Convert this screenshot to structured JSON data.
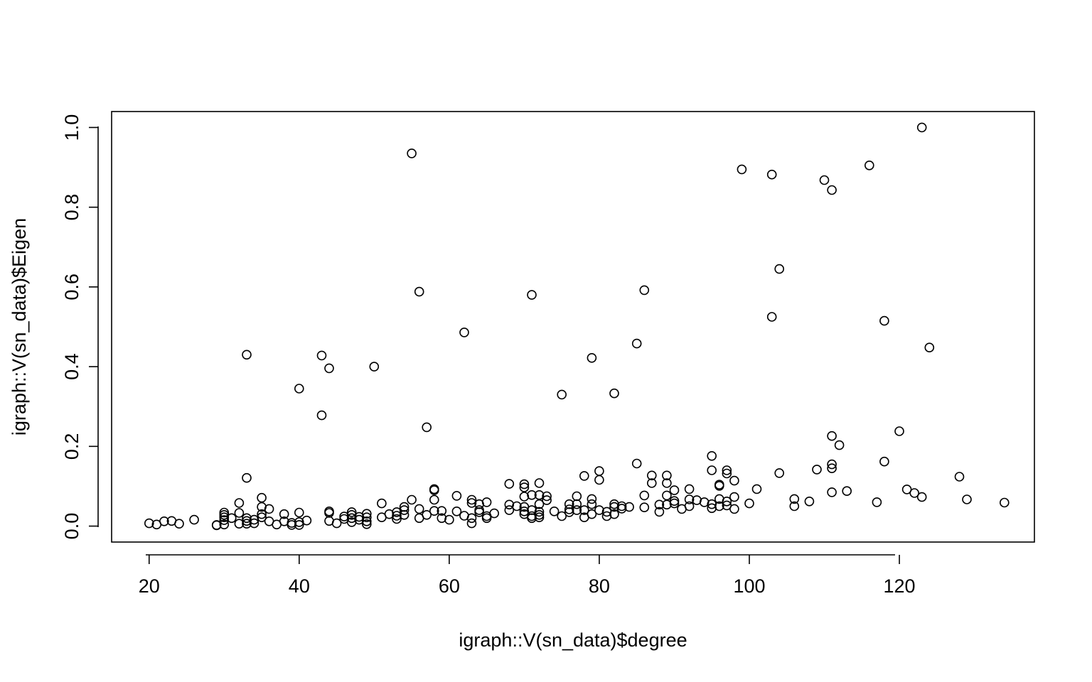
{
  "chart_data": {
    "type": "scatter",
    "xlabel": "igraph::V(sn_data)$degree",
    "ylabel": "igraph::V(sn_data)$Eigen",
    "xlim": [
      15,
      138
    ],
    "ylim": [
      -0.04,
      1.04
    ],
    "x_ticks": [
      20,
      40,
      60,
      80,
      100,
      120
    ],
    "y_ticks": [
      0.0,
      0.2,
      0.4,
      0.6,
      0.8,
      1.0
    ],
    "x_tick_labels": [
      "20",
      "40",
      "60",
      "80",
      "100",
      "120"
    ],
    "y_tick_labels": [
      "0.0",
      "0.2",
      "0.4",
      "0.6",
      "0.8",
      "1.0"
    ],
    "grid": false,
    "legend": "none",
    "points": [
      [
        20,
        0.007
      ],
      [
        21,
        0.004
      ],
      [
        22,
        0.012
      ],
      [
        23,
        0.013
      ],
      [
        24,
        0.006
      ],
      [
        26,
        0.016
      ],
      [
        29,
        0.003
      ],
      [
        29,
        0.002
      ],
      [
        30,
        0.034
      ],
      [
        30,
        0.028
      ],
      [
        30,
        0.022
      ],
      [
        30,
        0.015
      ],
      [
        30,
        0.004
      ],
      [
        31,
        0.02
      ],
      [
        32,
        0.058
      ],
      [
        32,
        0.033
      ],
      [
        32,
        0.006
      ],
      [
        33,
        0.43
      ],
      [
        33,
        0.121
      ],
      [
        33,
        0.02
      ],
      [
        33,
        0.013
      ],
      [
        33,
        0.006
      ],
      [
        34,
        0.016
      ],
      [
        34,
        0.007
      ],
      [
        35,
        0.071
      ],
      [
        35,
        0.048
      ],
      [
        35,
        0.03
      ],
      [
        35,
        0.022
      ],
      [
        36,
        0.043
      ],
      [
        36,
        0.012
      ],
      [
        37,
        0.004
      ],
      [
        38,
        0.03
      ],
      [
        38,
        0.012
      ],
      [
        39,
        0.008
      ],
      [
        39,
        0.003
      ],
      [
        40,
        0.345
      ],
      [
        40,
        0.034
      ],
      [
        40,
        0.01
      ],
      [
        40,
        0.003
      ],
      [
        41,
        0.014
      ],
      [
        43,
        0.428
      ],
      [
        43,
        0.278
      ],
      [
        44,
        0.396
      ],
      [
        44,
        0.037
      ],
      [
        44,
        0.033
      ],
      [
        44,
        0.013
      ],
      [
        45,
        0.007
      ],
      [
        46,
        0.024
      ],
      [
        46,
        0.018
      ],
      [
        47,
        0.035
      ],
      [
        47,
        0.028
      ],
      [
        47,
        0.02
      ],
      [
        47,
        0.01
      ],
      [
        48,
        0.023
      ],
      [
        48,
        0.016
      ],
      [
        49,
        0.031
      ],
      [
        49,
        0.022
      ],
      [
        49,
        0.012
      ],
      [
        49,
        0.005
      ],
      [
        50,
        0.4
      ],
      [
        51,
        0.057
      ],
      [
        51,
        0.022
      ],
      [
        52,
        0.03
      ],
      [
        53,
        0.035
      ],
      [
        53,
        0.026
      ],
      [
        53,
        0.018
      ],
      [
        54,
        0.048
      ],
      [
        54,
        0.04
      ],
      [
        54,
        0.028
      ],
      [
        55,
        0.935
      ],
      [
        55,
        0.066
      ],
      [
        56,
        0.588
      ],
      [
        56,
        0.043
      ],
      [
        56,
        0.02
      ],
      [
        57,
        0.248
      ],
      [
        57,
        0.028
      ],
      [
        58,
        0.093
      ],
      [
        58,
        0.09
      ],
      [
        58,
        0.066
      ],
      [
        58,
        0.038
      ],
      [
        59,
        0.038
      ],
      [
        59,
        0.02
      ],
      [
        60,
        0.016
      ],
      [
        61,
        0.076
      ],
      [
        61,
        0.037
      ],
      [
        62,
        0.486
      ],
      [
        62,
        0.026
      ],
      [
        63,
        0.066
      ],
      [
        63,
        0.058
      ],
      [
        63,
        0.02
      ],
      [
        63,
        0.007
      ],
      [
        64,
        0.055
      ],
      [
        64,
        0.04
      ],
      [
        64,
        0.035
      ],
      [
        65,
        0.06
      ],
      [
        65,
        0.025
      ],
      [
        65,
        0.02
      ],
      [
        66,
        0.032
      ],
      [
        68,
        0.106
      ],
      [
        68,
        0.054
      ],
      [
        68,
        0.04
      ],
      [
        69,
        0.05
      ],
      [
        70,
        0.105
      ],
      [
        70,
        0.097
      ],
      [
        70,
        0.074
      ],
      [
        70,
        0.048
      ],
      [
        70,
        0.037
      ],
      [
        70,
        0.03
      ],
      [
        71,
        0.58
      ],
      [
        71,
        0.078
      ],
      [
        71,
        0.04
      ],
      [
        71,
        0.025
      ],
      [
        71,
        0.02
      ],
      [
        72,
        0.108
      ],
      [
        72,
        0.078
      ],
      [
        72,
        0.055
      ],
      [
        72,
        0.036
      ],
      [
        72,
        0.028
      ],
      [
        72,
        0.022
      ],
      [
        73,
        0.075
      ],
      [
        73,
        0.065
      ],
      [
        74,
        0.037
      ],
      [
        75,
        0.33
      ],
      [
        75,
        0.025
      ],
      [
        76,
        0.055
      ],
      [
        76,
        0.042
      ],
      [
        76,
        0.035
      ],
      [
        77,
        0.075
      ],
      [
        77,
        0.055
      ],
      [
        77,
        0.04
      ],
      [
        78,
        0.126
      ],
      [
        78,
        0.04
      ],
      [
        78,
        0.022
      ],
      [
        79,
        0.422
      ],
      [
        79,
        0.068
      ],
      [
        79,
        0.055
      ],
      [
        79,
        0.03
      ],
      [
        80,
        0.138
      ],
      [
        80,
        0.116
      ],
      [
        80,
        0.04
      ],
      [
        81,
        0.036
      ],
      [
        81,
        0.025
      ],
      [
        82,
        0.333
      ],
      [
        82,
        0.055
      ],
      [
        82,
        0.048
      ],
      [
        82,
        0.03
      ],
      [
        83,
        0.05
      ],
      [
        83,
        0.044
      ],
      [
        84,
        0.048
      ],
      [
        85,
        0.458
      ],
      [
        85,
        0.157
      ],
      [
        86,
        0.592
      ],
      [
        86,
        0.077
      ],
      [
        86,
        0.047
      ],
      [
        87,
        0.127
      ],
      [
        87,
        0.108
      ],
      [
        88,
        0.054
      ],
      [
        88,
        0.036
      ],
      [
        89,
        0.127
      ],
      [
        89,
        0.108
      ],
      [
        89,
        0.077
      ],
      [
        89,
        0.054
      ],
      [
        90,
        0.09
      ],
      [
        90,
        0.063
      ],
      [
        90,
        0.057
      ],
      [
        91,
        0.043
      ],
      [
        92,
        0.093
      ],
      [
        92,
        0.067
      ],
      [
        92,
        0.05
      ],
      [
        93,
        0.065
      ],
      [
        94,
        0.06
      ],
      [
        95,
        0.176
      ],
      [
        95,
        0.14
      ],
      [
        95,
        0.055
      ],
      [
        95,
        0.045
      ],
      [
        96,
        0.104
      ],
      [
        96,
        0.101
      ],
      [
        96,
        0.068
      ],
      [
        96,
        0.05
      ],
      [
        97,
        0.14
      ],
      [
        97,
        0.132
      ],
      [
        97,
        0.062
      ],
      [
        97,
        0.052
      ],
      [
        98,
        0.114
      ],
      [
        98,
        0.073
      ],
      [
        98,
        0.043
      ],
      [
        99,
        0.895
      ],
      [
        100,
        0.057
      ],
      [
        101,
        0.093
      ],
      [
        103,
        0.882
      ],
      [
        103,
        0.525
      ],
      [
        104,
        0.645
      ],
      [
        104,
        0.133
      ],
      [
        106,
        0.068
      ],
      [
        106,
        0.05
      ],
      [
        108,
        0.062
      ],
      [
        109,
        0.142
      ],
      [
        110,
        0.868
      ],
      [
        111,
        0.843
      ],
      [
        111,
        0.226
      ],
      [
        111,
        0.155
      ],
      [
        111,
        0.145
      ],
      [
        111,
        0.085
      ],
      [
        112,
        0.203
      ],
      [
        113,
        0.088
      ],
      [
        116,
        0.905
      ],
      [
        117,
        0.06
      ],
      [
        118,
        0.515
      ],
      [
        118,
        0.162
      ],
      [
        120,
        0.238
      ],
      [
        121,
        0.092
      ],
      [
        122,
        0.083
      ],
      [
        123,
        1.0
      ],
      [
        123,
        0.073
      ],
      [
        124,
        0.448
      ],
      [
        128,
        0.124
      ],
      [
        129,
        0.067
      ],
      [
        134,
        0.059
      ]
    ]
  }
}
